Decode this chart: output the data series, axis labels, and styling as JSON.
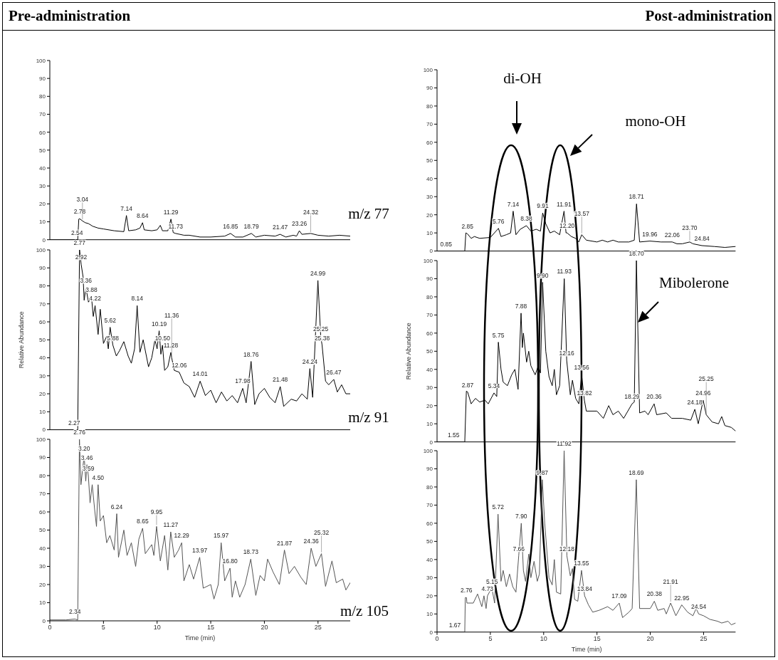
{
  "chart_data": [
    {
      "type": "line",
      "title": "Pre-administration",
      "x": [
        0,
        2.6,
        2.7,
        2.78,
        3.04,
        3.3,
        3.6,
        4,
        4.5,
        5,
        6,
        6.9,
        7.14,
        7.35,
        8,
        8.4,
        8.64,
        8.8,
        9.5,
        10,
        10.3,
        10.5,
        11,
        11.29,
        11.5,
        11.73,
        12.5,
        13,
        14,
        15,
        16.3,
        16.85,
        17.3,
        18,
        18.79,
        19.2,
        20,
        21,
        21.47,
        22,
        22.7,
        23,
        23.26,
        23.5,
        24.32,
        25,
        26,
        27,
        28
      ],
      "series": [
        {
          "color": "#000000",
          "values": [
            0,
            0,
            11.5,
            11.7,
            10.5,
            9.5,
            9,
            7.5,
            6.5,
            6,
            5,
            4.5,
            13.5,
            5,
            5.5,
            6.5,
            9.5,
            5.5,
            5,
            5.5,
            8,
            5,
            5,
            11.5,
            4,
            3.5,
            2.5,
            2.5,
            1.5,
            1.5,
            2,
            3.5,
            1.5,
            1.5,
            3.5,
            1.5,
            2.5,
            2,
            3,
            1.5,
            2.5,
            2,
            5,
            3,
            3.5,
            2.5,
            2,
            2.5,
            2
          ]
        }
      ],
      "xlim": [
        0,
        28
      ],
      "ylim": [
        0,
        100
      ],
      "xticks": [
        0,
        5,
        10,
        15,
        20,
        25
      ],
      "yticks": [
        0,
        10,
        20,
        30,
        40,
        50,
        60,
        70,
        80,
        90,
        100
      ],
      "tick_labels": "y",
      "annotations": [
        {
          "text": "2.54",
          "x": 2.54,
          "y": 0
        },
        {
          "text": "2.78",
          "x": 2.78,
          "y": 11.7
        },
        {
          "text": "3.04",
          "x": 3.04,
          "y": 10.5
        },
        {
          "text": "7.14",
          "x": 7.14,
          "y": 13.5
        },
        {
          "text": "8.64",
          "x": 8.64,
          "y": 9.5
        },
        {
          "text": "11.29",
          "x": 11.29,
          "y": 11.5
        },
        {
          "text": "11.73",
          "x": 11.73,
          "y": 3.5
        },
        {
          "text": "16.85",
          "x": 16.85,
          "y": 3.5
        },
        {
          "text": "18.79",
          "x": 18.79,
          "y": 3.5
        },
        {
          "text": "21.47",
          "x": 21.47,
          "y": 3
        },
        {
          "text": "23.26",
          "x": 23.26,
          "y": 5
        },
        {
          "text": "24.32",
          "x": 24.32,
          "y": 3.5
        },
        "m/z 77"
      ]
    },
    {
      "type": "line",
      "ylabel": "Relative Abundance",
      "x": [
        0,
        2.6,
        2.77,
        2.92,
        3.1,
        3.2,
        3.36,
        3.6,
        3.88,
        4.05,
        4.22,
        4.5,
        4.7,
        5,
        5.3,
        5.45,
        5.62,
        5.88,
        6.2,
        6.5,
        6.9,
        7.3,
        7.6,
        7.9,
        8.14,
        8.4,
        8.7,
        9.2,
        9.5,
        9.8,
        10,
        10.19,
        10.35,
        10.5,
        10.7,
        11,
        11.28,
        11.36,
        11.6,
        12.06,
        12.5,
        13,
        13.5,
        14.01,
        14.5,
        15,
        15.5,
        16,
        16.5,
        17,
        17.5,
        17.98,
        18.3,
        18.76,
        19.1,
        19.5,
        20,
        20.5,
        21,
        21.48,
        21.8,
        22.5,
        23,
        23.5,
        24,
        24.24,
        24.5,
        24.99,
        25.25,
        25.38,
        25.7,
        26,
        26.47,
        26.8,
        27.2,
        27.6,
        28
      ],
      "series": [
        {
          "color": "#000000",
          "values": [
            0,
            0,
            100,
            92,
            85,
            72,
            79,
            71,
            74,
            63,
            69,
            53,
            67,
            48,
            52,
            45,
            57,
            47,
            41,
            44,
            49,
            41,
            37,
            45,
            69,
            43,
            50,
            35,
            40,
            50,
            45,
            55,
            42,
            47,
            33,
            35,
            43,
            40,
            33,
            32,
            26,
            24,
            18,
            27,
            19,
            22,
            15,
            21,
            16,
            19,
            15,
            23,
            15,
            38,
            14,
            20,
            23,
            18,
            15,
            24,
            13,
            17,
            16,
            20,
            17,
            34,
            18,
            83,
            52,
            47,
            27,
            25,
            28,
            21,
            25,
            20,
            20
          ]
        }
      ],
      "xlim": [
        0,
        28
      ],
      "ylim": [
        0,
        100
      ],
      "xticks": [
        0,
        5,
        10,
        15,
        20,
        25
      ],
      "yticks": [
        0,
        10,
        20,
        30,
        40,
        50,
        60,
        70,
        80,
        90,
        100
      ],
      "tick_labels": "y",
      "annotations": [
        {
          "text": "2.27",
          "x": 2.27,
          "y": 0
        },
        {
          "text": "2.77",
          "x": 2.77,
          "y": 100
        },
        {
          "text": "2.92",
          "x": 2.92,
          "y": 92
        },
        {
          "text": "3.36",
          "x": 3.36,
          "y": 79
        },
        {
          "text": "3.88",
          "x": 3.88,
          "y": 74
        },
        {
          "text": "4.22",
          "x": 4.22,
          "y": 69
        },
        {
          "text": "5.62",
          "x": 5.62,
          "y": 57
        },
        {
          "text": "5.88",
          "x": 5.88,
          "y": 47
        },
        {
          "text": "8.14",
          "x": 8.14,
          "y": 69
        },
        {
          "text": "10.19",
          "x": 10.19,
          "y": 55
        },
        {
          "text": "10.50",
          "x": 10.5,
          "y": 47
        },
        {
          "text": "11.28",
          "x": 11.28,
          "y": 43
        },
        {
          "text": "11.36",
          "x": 11.36,
          "y": 40
        },
        {
          "text": "12.06",
          "x": 12.06,
          "y": 32
        },
        {
          "text": "14.01",
          "x": 14.01,
          "y": 27
        },
        {
          "text": "17.98",
          "x": 17.98,
          "y": 23
        },
        {
          "text": "18.76",
          "x": 18.76,
          "y": 38
        },
        {
          "text": "21.48",
          "x": 21.48,
          "y": 24
        },
        {
          "text": "24.24",
          "x": 24.24,
          "y": 34
        },
        {
          "text": "24.99",
          "x": 24.99,
          "y": 83
        },
        {
          "text": "25.25",
          "x": 25.25,
          "y": 52
        },
        {
          "text": "25.38",
          "x": 25.38,
          "y": 47
        },
        {
          "text": "26.47",
          "x": 26.47,
          "y": 28
        },
        "m/z 91"
      ]
    },
    {
      "type": "line",
      "xlabel": "Time (min)",
      "x": [
        0,
        1.5,
        2.34,
        2.6,
        2.76,
        2.9,
        3.05,
        3.2,
        3.35,
        3.46,
        3.59,
        3.75,
        3.95,
        4.2,
        4.35,
        4.5,
        4.7,
        5,
        5.3,
        5.6,
        6,
        6.24,
        6.4,
        6.9,
        7.2,
        7.6,
        8,
        8.3,
        8.65,
        8.9,
        9.5,
        9.7,
        9.95,
        10.3,
        10.7,
        11,
        11.27,
        11.6,
        12,
        12.29,
        12.5,
        13,
        13.4,
        13.97,
        14.3,
        15,
        15.3,
        15.7,
        15.97,
        16.3,
        16.8,
        17,
        17.3,
        17.7,
        18.2,
        18.73,
        19.2,
        19.6,
        20,
        20.3,
        20.8,
        21.4,
        21.87,
        22.3,
        22.8,
        23.4,
        23.9,
        24.36,
        24.8,
        25.32,
        25.7,
        26.3,
        26.7,
        27.3,
        27.6,
        28
      ],
      "series": [
        {
          "color": "#555555",
          "values": [
            0.5,
            0.5,
            1,
            0.5,
            100,
            75,
            83,
            91,
            77,
            86,
            80,
            65,
            75,
            60,
            52,
            75,
            55,
            58,
            43,
            47,
            39,
            59,
            35,
            50,
            36,
            43,
            30,
            45,
            51,
            37,
            42,
            36,
            52,
            33,
            47,
            28,
            49,
            35,
            39,
            43,
            22,
            31,
            23,
            35,
            18,
            20,
            12,
            20,
            43,
            22,
            29,
            13,
            22,
            13,
            20,
            34,
            14,
            25,
            22,
            34,
            27,
            20,
            39,
            26,
            30,
            24,
            20,
            40,
            30,
            37,
            19,
            33,
            21,
            23,
            17,
            21
          ]
        }
      ],
      "xlim": [
        0,
        28
      ],
      "ylim": [
        0,
        100
      ],
      "xticks": [
        0,
        5,
        10,
        15,
        20,
        25
      ],
      "yticks": [
        0,
        10,
        20,
        30,
        40,
        50,
        60,
        70,
        80,
        90,
        100
      ],
      "annotations": [
        {
          "text": "2.34",
          "x": 2.34,
          "y": 1
        },
        {
          "text": "2.76",
          "x": 2.76,
          "y": 100
        },
        {
          "text": "3.20",
          "x": 3.2,
          "y": 91
        },
        {
          "text": "3.46",
          "x": 3.46,
          "y": 86
        },
        {
          "text": "3.59",
          "x": 3.59,
          "y": 80
        },
        {
          "text": "4.50",
          "x": 4.5,
          "y": 75
        },
        {
          "text": "6.24",
          "x": 6.24,
          "y": 59
        },
        {
          "text": "8.65",
          "x": 8.65,
          "y": 51
        },
        {
          "text": "9.95",
          "x": 9.95,
          "y": 52
        },
        {
          "text": "11.27",
          "x": 11.27,
          "y": 49
        },
        {
          "text": "12.29",
          "x": 12.29,
          "y": 43
        },
        {
          "text": "13.97",
          "x": 13.97,
          "y": 35
        },
        {
          "text": "15.97",
          "x": 15.97,
          "y": 43
        },
        {
          "text": "16.80",
          "x": 16.8,
          "y": 29
        },
        {
          "text": "18.73",
          "x": 18.73,
          "y": 34
        },
        {
          "text": "21.87",
          "x": 21.87,
          "y": 39
        },
        {
          "text": "24.36",
          "x": 24.36,
          "y": 40
        },
        {
          "text": "25.32",
          "x": 25.32,
          "y": 37
        },
        "m/z 105"
      ]
    },
    {
      "type": "line",
      "title": "Post-administration",
      "x": [
        0,
        2.6,
        2.7,
        2.85,
        3.2,
        3.5,
        4,
        5,
        5.76,
        6,
        6.5,
        6.9,
        7.14,
        7.4,
        7.8,
        8.38,
        8.8,
        9.3,
        9.7,
        9.91,
        10.2,
        10.6,
        11,
        11.5,
        11.91,
        12.1,
        12.2,
        12.6,
        13,
        13.3,
        13.57,
        14,
        15,
        15.5,
        16,
        16.5,
        17,
        18,
        18.5,
        18.71,
        19,
        19.96,
        21,
        22.06,
        22.5,
        23,
        23.7,
        24,
        24.84,
        26,
        27,
        28
      ],
      "series": [
        {
          "color": "#000000",
          "values": [
            0,
            0,
            10,
            9.5,
            7,
            8,
            7,
            7.5,
            12.5,
            8,
            9,
            10,
            22,
            9,
            12,
            14,
            11,
            12,
            11,
            21,
            15,
            10,
            11,
            9,
            22,
            10,
            10,
            8,
            7,
            5,
            9,
            6,
            5,
            6,
            5,
            6,
            5,
            5,
            6,
            26,
            5,
            5.5,
            5,
            5,
            4,
            4,
            5,
            4,
            3,
            2.5,
            2,
            2.5
          ]
        }
      ],
      "xlim": [
        0,
        28
      ],
      "ylim": [
        0,
        100
      ],
      "xticks": [
        0,
        5,
        10,
        15,
        20,
        25
      ],
      "yticks": [
        0,
        10,
        20,
        30,
        40,
        50,
        60,
        70,
        80,
        90,
        100
      ],
      "tick_labels": "y",
      "annotations": [
        {
          "text": "0.85",
          "x": 0.85,
          "y": 0
        },
        {
          "text": "2.85",
          "x": 2.85,
          "y": 9.5
        },
        {
          "text": "5.76",
          "x": 5.76,
          "y": 12.5
        },
        {
          "text": "7.14",
          "x": 7.14,
          "y": 22
        },
        {
          "text": "8.38",
          "x": 8.38,
          "y": 14
        },
        {
          "text": "9.91",
          "x": 9.91,
          "y": 21
        },
        {
          "text": "11.91",
          "x": 11.91,
          "y": 22
        },
        {
          "text": "12.20",
          "x": 12.2,
          "y": 10
        },
        {
          "text": "13.57",
          "x": 13.57,
          "y": 9
        },
        {
          "text": "18.71",
          "x": 18.71,
          "y": 26
        },
        {
          "text": "19.96",
          "x": 19.96,
          "y": 5.5
        },
        {
          "text": "22.06",
          "x": 22.06,
          "y": 5
        },
        {
          "text": "23.70",
          "x": 23.7,
          "y": 5
        },
        {
          "text": "24.84",
          "x": 24.84,
          "y": 3
        },
        "di-OH",
        "mono-OH"
      ]
    },
    {
      "type": "line",
      "ylabel": "Relative Abundance",
      "x": [
        0,
        2.6,
        2.75,
        2.87,
        3.2,
        3.6,
        4,
        4.5,
        4.8,
        5.34,
        5.6,
        5.75,
        6,
        6.2,
        6.6,
        7,
        7.3,
        7.6,
        7.88,
        8,
        8.1,
        8.4,
        8.6,
        8.8,
        9.2,
        9.5,
        9.7,
        9.9,
        10.2,
        10.5,
        10.8,
        11,
        11.2,
        11.5,
        11.93,
        12.16,
        12.5,
        12.7,
        13,
        13.3,
        13.56,
        13.82,
        14,
        15,
        15.6,
        16.1,
        16.5,
        17,
        17.5,
        18.29,
        18.5,
        18.7,
        19,
        19.5,
        19.8,
        20.36,
        20.6,
        21.5,
        22,
        23,
        23.8,
        24.18,
        24.5,
        24.96,
        25.25,
        25.8,
        26.4,
        26.7,
        27,
        27.6,
        28
      ],
      "series": [
        {
          "color": "#000000",
          "values": [
            0,
            0,
            28,
            27.5,
            21,
            24,
            22,
            23,
            21,
            27,
            25,
            55,
            40,
            33,
            31,
            37,
            40,
            29,
            71,
            52,
            60,
            44,
            50,
            42,
            37,
            42,
            38,
            88,
            50,
            36,
            31,
            40,
            26,
            31,
            90,
            45,
            26,
            34,
            24,
            21,
            37,
            23,
            17,
            17,
            13,
            20,
            15,
            17,
            13,
            21,
            22,
            100,
            16,
            17,
            15,
            21,
            15,
            16,
            13,
            13,
            12,
            18,
            10,
            23,
            15,
            11,
            10,
            14,
            9,
            8,
            6
          ]
        }
      ],
      "xlim": [
        0,
        28
      ],
      "ylim": [
        0,
        100
      ],
      "xticks": [
        0,
        5,
        10,
        15,
        20,
        25
      ],
      "yticks": [
        0,
        10,
        20,
        30,
        40,
        50,
        60,
        70,
        80,
        90,
        100
      ],
      "tick_labels": "y",
      "annotations": [
        {
          "text": "1.55",
          "x": 1.55,
          "y": 0
        },
        {
          "text": "2.87",
          "x": 2.87,
          "y": 27.5
        },
        {
          "text": "5.34",
          "x": 5.34,
          "y": 27
        },
        {
          "text": "5.75",
          "x": 5.75,
          "y": 55
        },
        {
          "text": "7.88",
          "x": 7.88,
          "y": 71
        },
        {
          "text": "9.90",
          "x": 9.9,
          "y": 88
        },
        {
          "text": "11.93",
          "x": 11.93,
          "y": 90
        },
        {
          "text": "12.16",
          "x": 12.16,
          "y": 45
        },
        {
          "text": "13.56",
          "x": 13.56,
          "y": 37
        },
        {
          "text": "13.82",
          "x": 13.82,
          "y": 23
        },
        {
          "text": "18.29",
          "x": 18.29,
          "y": 21
        },
        {
          "text": "18.70",
          "x": 18.7,
          "y": 100
        },
        {
          "text": "20.36",
          "x": 20.36,
          "y": 21
        },
        {
          "text": "24.18",
          "x": 24.18,
          "y": 18
        },
        {
          "text": "24.96",
          "x": 24.96,
          "y": 23
        },
        {
          "text": "25.25",
          "x": 25.25,
          "y": 15
        },
        "Mibolerone"
      ]
    },
    {
      "type": "line",
      "xlabel": "Time (min)",
      "x": [
        0,
        2.6,
        2.65,
        2.76,
        2.8,
        3.4,
        3.8,
        4.2,
        4.4,
        4.6,
        4.73,
        5,
        5.15,
        5.4,
        5.72,
        6,
        6.2,
        6.5,
        6.8,
        7.1,
        7.4,
        7.66,
        7.9,
        8.1,
        8.3,
        8.6,
        8.8,
        9.1,
        9.4,
        9.6,
        9.87,
        10.1,
        10.5,
        10.8,
        11,
        11.2,
        11.6,
        11.92,
        12.18,
        12.5,
        12.7,
        12.9,
        13.2,
        13.55,
        13.84,
        14.2,
        14.6,
        15.2,
        16,
        16.5,
        17.09,
        17.4,
        18,
        18.3,
        18.69,
        19,
        20,
        20.38,
        20.7,
        21.3,
        21.5,
        21.91,
        22.4,
        22.95,
        23.5,
        24,
        24.3,
        24.54,
        25,
        25.6,
        26.3,
        26.7,
        27.3,
        27.6,
        28
      ],
      "series": [
        {
          "color": "#555555",
          "values": [
            0,
            0,
            19,
            19,
            16,
            16,
            21,
            14,
            20,
            13,
            20,
            23,
            24,
            16,
            65,
            28,
            34,
            25,
            32,
            25,
            22,
            42,
            60,
            34,
            28,
            43,
            30,
            39,
            28,
            32,
            84,
            60,
            30,
            26,
            40,
            22,
            21,
            100,
            42,
            31,
            35,
            18,
            17,
            34,
            20,
            15,
            11,
            12,
            14,
            12,
            16,
            8,
            11,
            13,
            84,
            13,
            13,
            17,
            12,
            13,
            10,
            16,
            9,
            15,
            11,
            9,
            13,
            10,
            9,
            7,
            6,
            5,
            6,
            4,
            5
          ]
        }
      ],
      "xlim": [
        0,
        28
      ],
      "ylim": [
        0,
        100
      ],
      "xticks": [
        0,
        5,
        10,
        15,
        20,
        25
      ],
      "yticks": [
        0,
        10,
        20,
        30,
        40,
        50,
        60,
        70,
        80,
        90,
        100
      ],
      "annotations": [
        {
          "text": "1.67",
          "x": 1.67,
          "y": 0
        },
        {
          "text": "2.76",
          "x": 2.76,
          "y": 19
        },
        {
          "text": "4.73",
          "x": 4.73,
          "y": 20
        },
        {
          "text": "5.15",
          "x": 5.15,
          "y": 24
        },
        {
          "text": "5.72",
          "x": 5.72,
          "y": 65
        },
        {
          "text": "7.66",
          "x": 7.66,
          "y": 42
        },
        {
          "text": "7.90",
          "x": 7.9,
          "y": 60
        },
        {
          "text": "9.87",
          "x": 9.87,
          "y": 84
        },
        {
          "text": "11.92",
          "x": 11.92,
          "y": 100
        },
        {
          "text": "12.18",
          "x": 12.18,
          "y": 42
        },
        {
          "text": "13.55",
          "x": 13.55,
          "y": 34
        },
        {
          "text": "13.84",
          "x": 13.84,
          "y": 20
        },
        {
          "text": "17.09",
          "x": 17.09,
          "y": 16
        },
        {
          "text": "18.69",
          "x": 18.69,
          "y": 84
        },
        {
          "text": "20.38",
          "x": 20.38,
          "y": 17
        },
        {
          "text": "21.91",
          "x": 21.91,
          "y": 16
        },
        {
          "text": "22.95",
          "x": 22.95,
          "y": 15
        },
        {
          "text": "24.54",
          "x": 24.54,
          "y": 10
        }
      ]
    }
  ]
}
